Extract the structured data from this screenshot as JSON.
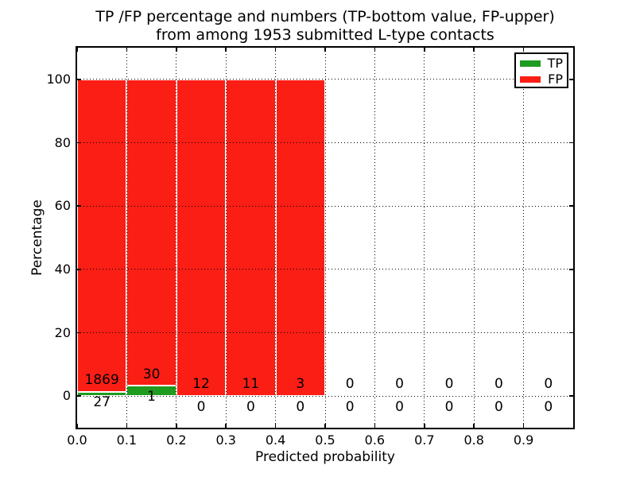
{
  "figure": {
    "title_line1": "TP /FP percentage and numbers (TP-bottom value, FP-upper)",
    "title_line2": "from among 1953 submitted L-type contacts"
  },
  "chart_data": {
    "type": "bar",
    "stacked_percentage": true,
    "title": "TP /FP percentage and numbers (TP-bottom value, FP-upper) from among 1953 submitted L-type contacts",
    "xlabel": "Predicted probability",
    "ylabel": "Percentage",
    "xlim": [
      0.0,
      1.0
    ],
    "ylim": [
      -10,
      110
    ],
    "xticks": [
      "0.0",
      "0.1",
      "0.2",
      "0.3",
      "0.4",
      "0.5",
      "0.6",
      "0.7",
      "0.8",
      "0.9"
    ],
    "yticks": [
      0,
      20,
      40,
      60,
      80,
      100
    ],
    "grid": "dotted black, drawn above bars",
    "legend": {
      "position": "upper right",
      "entries": [
        "TP",
        "FP"
      ]
    },
    "total_contacts": 1953,
    "colors": {
      "tp": "#1f9b1f",
      "fp": "#fb1e15",
      "bar_edge": "#ffffff"
    },
    "series": [
      {
        "name": "TP",
        "color": "#1f9b1f",
        "counts": [
          27,
          1,
          0,
          0,
          0,
          0,
          0,
          0,
          0,
          0
        ],
        "values_pct": [
          1.42,
          3.23,
          0,
          0,
          0,
          0,
          0,
          0,
          0,
          0
        ]
      },
      {
        "name": "FP",
        "color": "#fb1e15",
        "counts": [
          1869,
          30,
          12,
          11,
          3,
          0,
          0,
          0,
          0,
          0
        ],
        "values_pct": [
          98.58,
          96.77,
          100,
          100,
          100,
          0,
          0,
          0,
          0,
          0
        ]
      }
    ],
    "bins": [
      {
        "range": "0.0-0.1",
        "tp": 27,
        "fp": 1869,
        "tp_pct": 1.42,
        "fp_pct": 98.58
      },
      {
        "range": "0.1-0.2",
        "tp": 1,
        "fp": 30,
        "tp_pct": 3.23,
        "fp_pct": 96.77
      },
      {
        "range": "0.2-0.3",
        "tp": 0,
        "fp": 12,
        "tp_pct": 0,
        "fp_pct": 100
      },
      {
        "range": "0.3-0.4",
        "tp": 0,
        "fp": 11,
        "tp_pct": 0,
        "fp_pct": 100
      },
      {
        "range": "0.4-0.5",
        "tp": 0,
        "fp": 3,
        "tp_pct": 0,
        "fp_pct": 100
      },
      {
        "range": "0.5-0.6",
        "tp": 0,
        "fp": 0,
        "tp_pct": 0,
        "fp_pct": 0
      },
      {
        "range": "0.6-0.7",
        "tp": 0,
        "fp": 0,
        "tp_pct": 0,
        "fp_pct": 0
      },
      {
        "range": "0.7-0.8",
        "tp": 0,
        "fp": 0,
        "tp_pct": 0,
        "fp_pct": 0
      },
      {
        "range": "0.8-0.9",
        "tp": 0,
        "fp": 0,
        "tp_pct": 0,
        "fp_pct": 0
      },
      {
        "range": "0.9-1.0",
        "tp": 0,
        "fp": 0,
        "tp_pct": 0,
        "fp_pct": 0
      }
    ]
  }
}
